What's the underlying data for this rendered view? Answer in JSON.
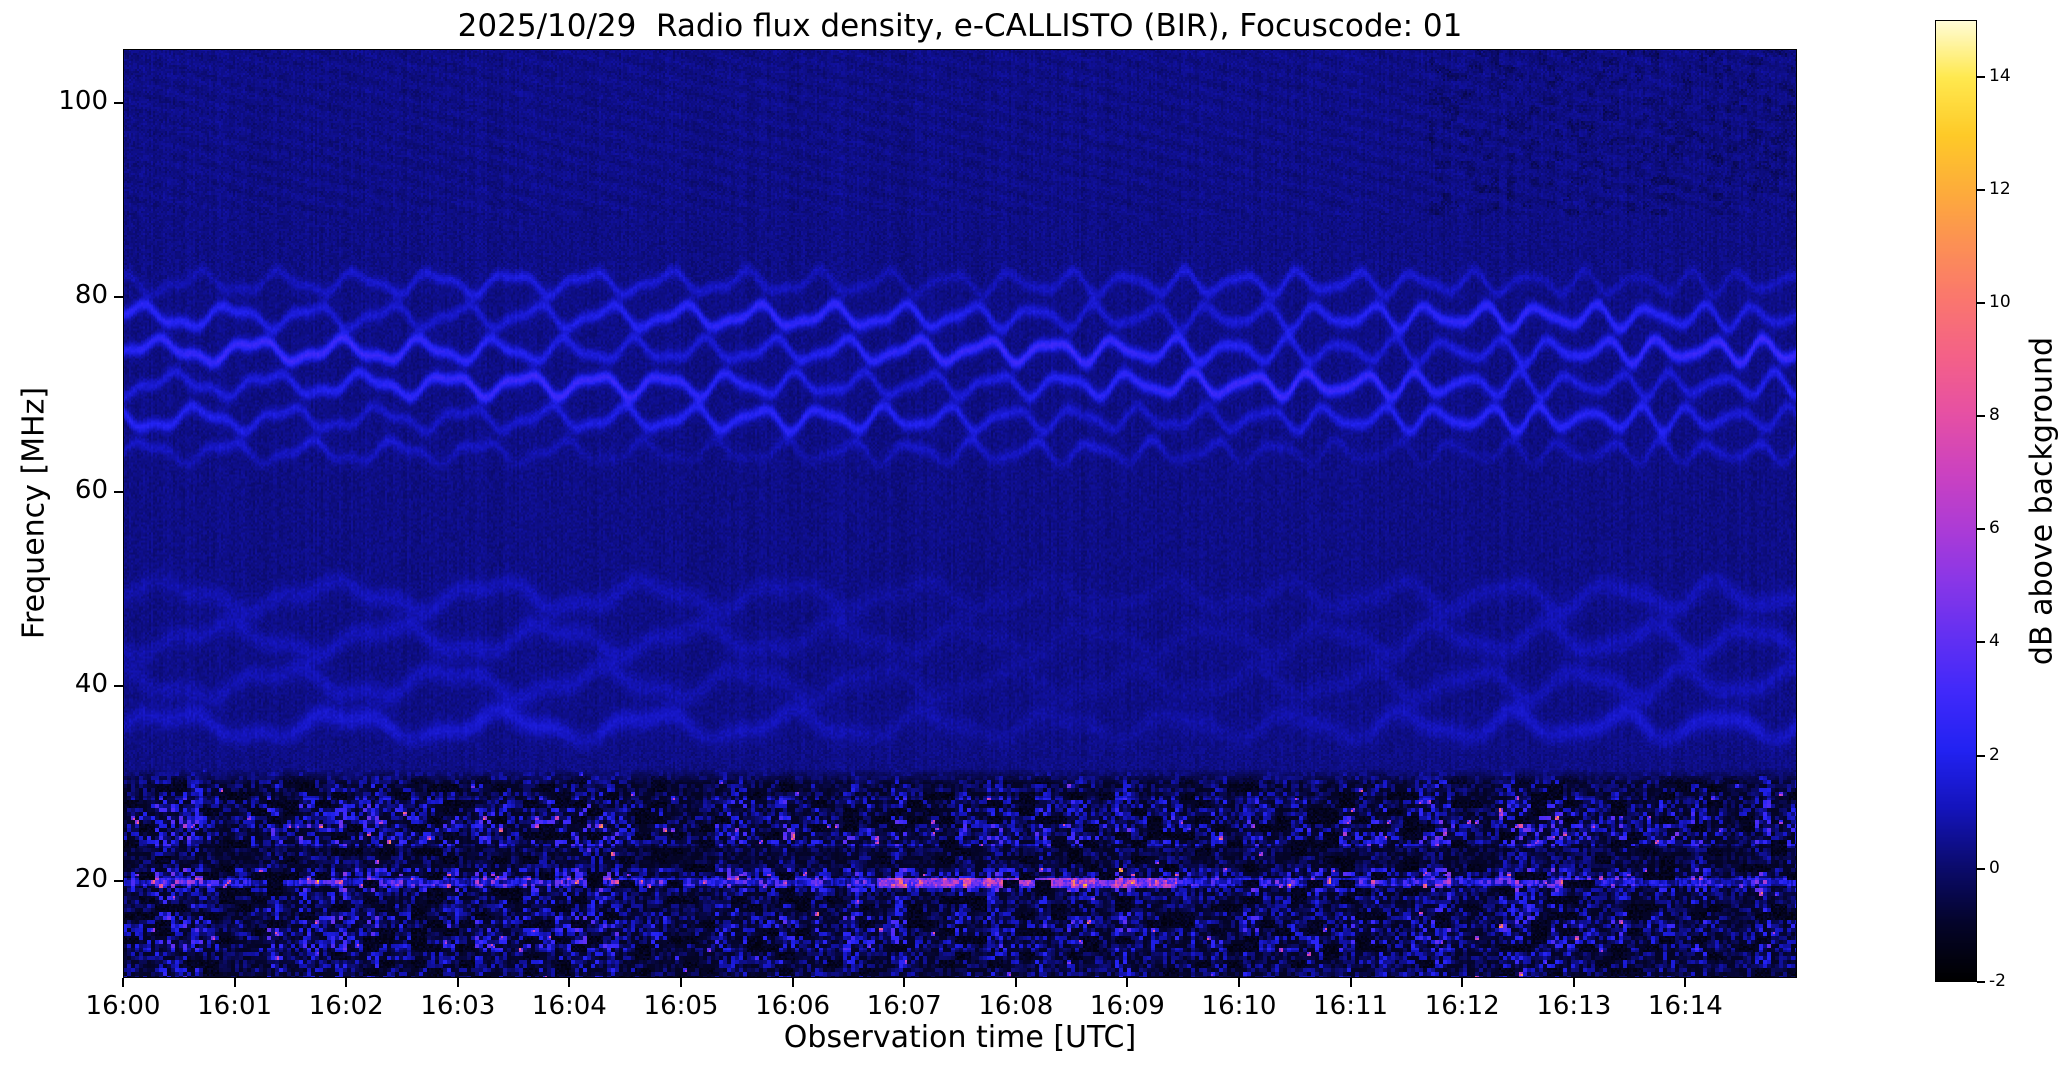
{
  "chart_data": {
    "type": "heatmap",
    "title": "2025/10/29  Radio flux density, e-CALLISTO (BIR), Focuscode: 01",
    "xlabel": "Observation time [UTC]",
    "ylabel": "Frequency [MHz]",
    "colorbar_label": "dB above background",
    "x_ticklabels": [
      "16:00",
      "16:01",
      "16:02",
      "16:03",
      "16:04",
      "16:05",
      "16:06",
      "16:07",
      "16:08",
      "16:09",
      "16:10",
      "16:11",
      "16:12",
      "16:13",
      "16:14"
    ],
    "x_total_minutes": 15,
    "y_ticks": [
      100,
      80,
      60,
      40,
      20
    ],
    "freq_min": 10,
    "freq_max": 105.5,
    "value_min": -2,
    "value_max": 15,
    "colorbar_ticks": [
      14,
      12,
      10,
      8,
      6,
      4,
      2,
      0,
      -2
    ],
    "grid": false,
    "legend": "colorbar-right",
    "colormap_stops": [
      [
        0.0,
        "#000000"
      ],
      [
        0.06,
        "#04042a"
      ],
      [
        0.12,
        "#0b0b6e"
      ],
      [
        0.18,
        "#1414bc"
      ],
      [
        0.24,
        "#2222f2"
      ],
      [
        0.3,
        "#4029fa"
      ],
      [
        0.36,
        "#6430f2"
      ],
      [
        0.42,
        "#8c37e6"
      ],
      [
        0.47,
        "#ac3bd6"
      ],
      [
        0.53,
        "#cc42c0"
      ],
      [
        0.59,
        "#e650a4"
      ],
      [
        0.65,
        "#f46188"
      ],
      [
        0.71,
        "#fa776e"
      ],
      [
        0.77,
        "#fc9253"
      ],
      [
        0.82,
        "#fdab3c"
      ],
      [
        0.88,
        "#feca28"
      ],
      [
        0.94,
        "#ffe94f"
      ],
      [
        1.0,
        "#fffcd8"
      ]
    ],
    "features": {
      "background_db": 0.35,
      "fringe_band_mhz": [
        62,
        86
      ],
      "interference_fringe_lines_mhz": [
        64.0,
        67.5,
        71.0,
        74.5,
        78.0,
        81.5
      ],
      "fringe_line_strength": [
        0.45,
        0.75,
        1.0,
        1.0,
        0.85,
        0.5
      ],
      "faint_fringe_lines_mhz": [
        35.8,
        40.3,
        44.8,
        49.3
      ],
      "rfi_band_mhz": [
        10,
        31.5
      ],
      "rfi_bright_line_mhz": 19.8,
      "rfi_pink_speckle_lines_mhz": [
        19.8,
        25.6
      ],
      "rfi_burst_time_frac": [
        0.45,
        0.63
      ],
      "rfi_peak_db": 10
    }
  }
}
